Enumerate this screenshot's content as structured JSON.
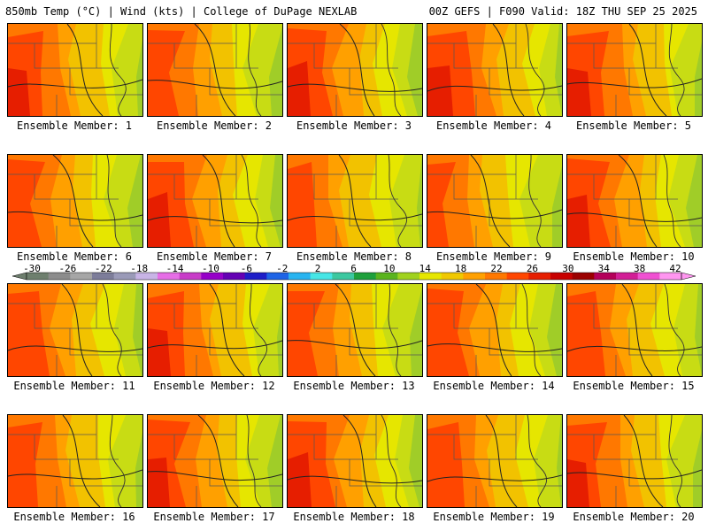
{
  "header": {
    "left": "850mb Temp (°C) | Wind (kts) | College of DuPage NEXLAB",
    "right": "00Z GEFS | F090 Valid: 18Z THU SEP 25 2025"
  },
  "members": [
    {
      "label": "Ensemble Member: 1",
      "warmth": 0.55
    },
    {
      "label": "Ensemble Member: 2",
      "warmth": 0.4
    },
    {
      "label": "Ensemble Member: 3",
      "warmth": 0.6
    },
    {
      "label": "Ensemble Member: 4",
      "warmth": 0.75
    },
    {
      "label": "Ensemble Member: 5",
      "warmth": 0.65
    },
    {
      "label": "Ensemble Member: 6",
      "warmth": 0.4
    },
    {
      "label": "Ensemble Member: 7",
      "warmth": 0.6
    },
    {
      "label": "Ensemble Member: 8",
      "warmth": 0.3
    },
    {
      "label": "Ensemble Member: 9",
      "warmth": 0.2
    },
    {
      "label": "Ensemble Member: 10",
      "warmth": 0.6
    },
    {
      "label": "Ensemble Member: 11",
      "warmth": 0.5
    },
    {
      "label": "Ensemble Member: 12",
      "warmth": 0.6
    },
    {
      "label": "Ensemble Member: 13",
      "warmth": 0.4
    },
    {
      "label": "Ensemble Member: 14",
      "warmth": 0.5
    },
    {
      "label": "Ensemble Member: 15",
      "warmth": 0.45
    },
    {
      "label": "Ensemble Member: 16",
      "warmth": 0.45
    },
    {
      "label": "Ensemble Member: 17",
      "warmth": 0.55
    },
    {
      "label": "Ensemble Member: 18",
      "warmth": 0.65
    },
    {
      "label": "Ensemble Member: 19",
      "warmth": 0.5
    },
    {
      "label": "Ensemble Member: 20",
      "warmth": 0.55
    }
  ],
  "colorbar": {
    "labels": [
      "-30",
      "-26",
      "-22",
      "-18",
      "-14",
      "-10",
      "-6",
      "-2",
      "2",
      "6",
      "10",
      "14",
      "18",
      "22",
      "26",
      "30",
      "34",
      "38",
      "42"
    ],
    "colors": [
      "#6e7f6e",
      "#8c8c8c",
      "#a6a6a6",
      "#7d7d9a",
      "#9a9ab8",
      "#c8b4e6",
      "#e66ee6",
      "#c83cc8",
      "#9600c8",
      "#6400b4",
      "#1e1ec8",
      "#1e64e6",
      "#28b4f0",
      "#46e6e6",
      "#3cc8a0",
      "#1ea03c",
      "#5ab41e",
      "#a0d21e",
      "#e6e600",
      "#f0c800",
      "#ffa000",
      "#ff7800",
      "#ff4600",
      "#e61e00",
      "#c80000",
      "#9b0000",
      "#b4005a",
      "#d21e96",
      "#f050d2",
      "#ff96f0"
    ],
    "field_colors": [
      "#a0cd28",
      "#c8dc14",
      "#e6e600",
      "#f2c200",
      "#ffa000",
      "#ff7800",
      "#ff4600",
      "#e61e00"
    ]
  }
}
